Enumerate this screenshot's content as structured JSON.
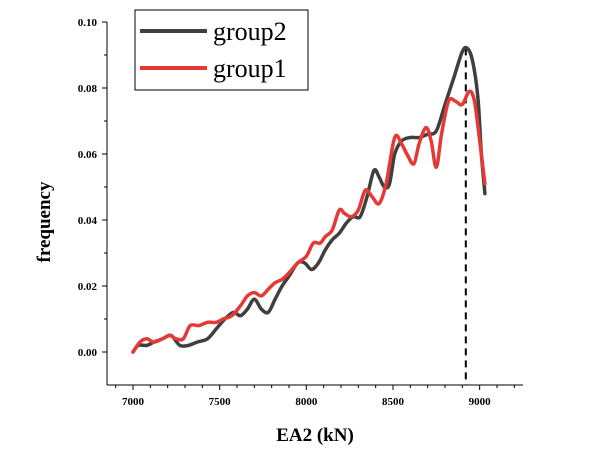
{
  "chart_data": {
    "type": "line",
    "xlabel": "EA2 (kN)",
    "ylabel": "frequency",
    "xlim": [
      6850,
      9250
    ],
    "ylim": [
      -0.01,
      0.1
    ],
    "xticks": [
      7000,
      7500,
      8000,
      8500,
      9000
    ],
    "xtick_labels": [
      "7000",
      "7500",
      "8000",
      "8500",
      "9000"
    ],
    "yticks": [
      0.0,
      0.02,
      0.04,
      0.06,
      0.08,
      0.1
    ],
    "ytick_labels": [
      "0.00",
      "0.02",
      "0.04",
      "0.06",
      "0.08",
      "0.10"
    ],
    "legend_position": "top-left",
    "grid": false,
    "reference_line": {
      "x": 8920,
      "style": "dashed",
      "color": "#000000"
    },
    "series": [
      {
        "name": "group2",
        "color": "#3f3f3f",
        "points": [
          [
            7000,
            0.0
          ],
          [
            7030,
            0.002
          ],
          [
            7080,
            0.002
          ],
          [
            7120,
            0.003
          ],
          [
            7170,
            0.004
          ],
          [
            7220,
            0.005
          ],
          [
            7270,
            0.002
          ],
          [
            7320,
            0.002
          ],
          [
            7370,
            0.003
          ],
          [
            7430,
            0.004
          ],
          [
            7480,
            0.007
          ],
          [
            7530,
            0.01
          ],
          [
            7580,
            0.012
          ],
          [
            7620,
            0.011
          ],
          [
            7660,
            0.013
          ],
          [
            7700,
            0.016
          ],
          [
            7740,
            0.013
          ],
          [
            7780,
            0.012
          ],
          [
            7820,
            0.016
          ],
          [
            7860,
            0.02
          ],
          [
            7900,
            0.023
          ],
          [
            7950,
            0.027
          ],
          [
            7990,
            0.027
          ],
          [
            8030,
            0.025
          ],
          [
            8070,
            0.027
          ],
          [
            8110,
            0.031
          ],
          [
            8150,
            0.034
          ],
          [
            8190,
            0.036
          ],
          [
            8230,
            0.039
          ],
          [
            8270,
            0.041
          ],
          [
            8310,
            0.041
          ],
          [
            8350,
            0.047
          ],
          [
            8390,
            0.055
          ],
          [
            8420,
            0.053
          ],
          [
            8450,
            0.05
          ],
          [
            8480,
            0.051
          ],
          [
            8510,
            0.06
          ],
          [
            8550,
            0.064
          ],
          [
            8600,
            0.065
          ],
          [
            8650,
            0.065
          ],
          [
            8700,
            0.066
          ],
          [
            8750,
            0.067
          ],
          [
            8800,
            0.075
          ],
          [
            8850,
            0.083
          ],
          [
            8900,
            0.091
          ],
          [
            8930,
            0.092
          ],
          [
            8960,
            0.088
          ],
          [
            8990,
            0.077
          ],
          [
            9010,
            0.06
          ],
          [
            9030,
            0.048
          ]
        ]
      },
      {
        "name": "group1",
        "color": "#e53935",
        "points": [
          [
            7000,
            0.0
          ],
          [
            7040,
            0.003
          ],
          [
            7080,
            0.004
          ],
          [
            7120,
            0.003
          ],
          [
            7170,
            0.004
          ],
          [
            7210,
            0.005
          ],
          [
            7250,
            0.004
          ],
          [
            7290,
            0.004
          ],
          [
            7330,
            0.008
          ],
          [
            7380,
            0.008
          ],
          [
            7430,
            0.009
          ],
          [
            7480,
            0.009
          ],
          [
            7520,
            0.01
          ],
          [
            7570,
            0.011
          ],
          [
            7620,
            0.014
          ],
          [
            7660,
            0.017
          ],
          [
            7700,
            0.018
          ],
          [
            7740,
            0.017
          ],
          [
            7780,
            0.019
          ],
          [
            7820,
            0.021
          ],
          [
            7860,
            0.022
          ],
          [
            7900,
            0.024
          ],
          [
            7950,
            0.027
          ],
          [
            8000,
            0.029
          ],
          [
            8040,
            0.033
          ],
          [
            8080,
            0.033
          ],
          [
            8110,
            0.035
          ],
          [
            8150,
            0.037
          ],
          [
            8190,
            0.043
          ],
          [
            8220,
            0.042
          ],
          [
            8260,
            0.041
          ],
          [
            8300,
            0.043
          ],
          [
            8340,
            0.049
          ],
          [
            8380,
            0.047
          ],
          [
            8420,
            0.045
          ],
          [
            8460,
            0.051
          ],
          [
            8510,
            0.065
          ],
          [
            8550,
            0.063
          ],
          [
            8580,
            0.06
          ],
          [
            8620,
            0.057
          ],
          [
            8650,
            0.063
          ],
          [
            8690,
            0.068
          ],
          [
            8720,
            0.064
          ],
          [
            8750,
            0.056
          ],
          [
            8780,
            0.066
          ],
          [
            8820,
            0.076
          ],
          [
            8860,
            0.076
          ],
          [
            8900,
            0.075
          ],
          [
            8940,
            0.079
          ],
          [
            8970,
            0.076
          ],
          [
            9000,
            0.064
          ],
          [
            9030,
            0.051
          ]
        ]
      }
    ]
  }
}
